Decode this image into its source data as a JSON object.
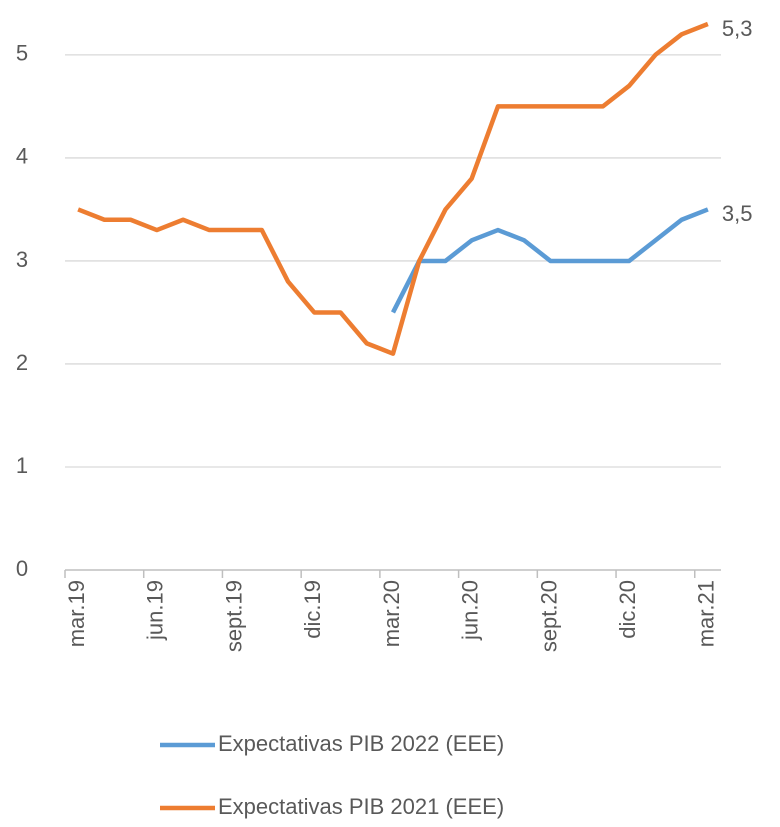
{
  "chart_data": {
    "type": "line",
    "categories": [
      "mar.19",
      null,
      null,
      "jun.19",
      null,
      null,
      "sept.19",
      null,
      null,
      "dic.19",
      null,
      null,
      "mar.20",
      null,
      null,
      "jun.20",
      null,
      null,
      "sept.20",
      null,
      null,
      "dic.20",
      null,
      null,
      "mar.21"
    ],
    "series": [
      {
        "name": "Expectativas PIB 2022 (EEE)",
        "color": "#5b9bd5",
        "values": [
          null,
          null,
          null,
          null,
          null,
          null,
          null,
          null,
          null,
          null,
          null,
          null,
          2.5,
          3.0,
          3.0,
          3.2,
          3.3,
          3.2,
          3.0,
          3.0,
          3.0,
          3.0,
          3.2,
          3.4,
          3.5
        ],
        "value_labels": [
          null,
          null,
          null,
          null,
          null,
          null,
          null,
          null,
          null,
          null,
          null,
          null,
          null,
          null,
          null,
          null,
          null,
          null,
          null,
          null,
          null,
          null,
          null,
          null,
          "3,5"
        ]
      },
      {
        "name": "Expectativas PIB 2021 (EEE)",
        "color": "#ed7d31",
        "values": [
          3.5,
          3.4,
          3.4,
          3.3,
          3.4,
          3.3,
          3.3,
          3.3,
          2.8,
          2.5,
          2.5,
          2.2,
          2.1,
          3.0,
          3.5,
          3.8,
          4.5,
          4.5,
          4.5,
          4.5,
          4.5,
          4.7,
          5.0,
          5.2,
          5.3
        ],
        "value_labels": [
          null,
          null,
          null,
          null,
          null,
          null,
          null,
          null,
          null,
          null,
          null,
          null,
          null,
          null,
          null,
          null,
          null,
          null,
          null,
          null,
          null,
          null,
          null,
          null,
          "5,3"
        ]
      }
    ],
    "ylim": [
      0,
      5.3
    ],
    "yticks": [
      0,
      1,
      2,
      3,
      4,
      5
    ],
    "grid": true,
    "legend": "bottom"
  }
}
